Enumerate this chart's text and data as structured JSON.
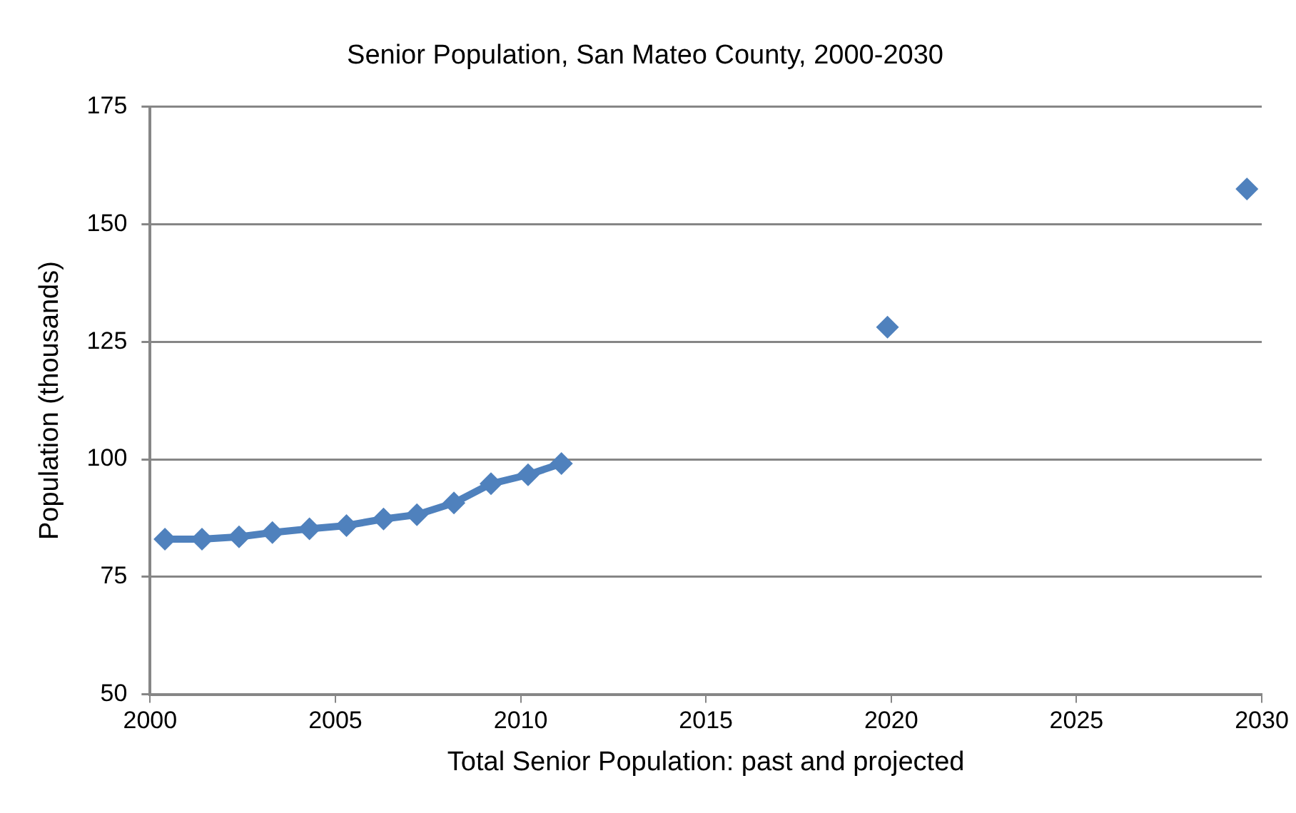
{
  "chart_data": {
    "type": "line",
    "title": "Senior Population, San Mateo County, 2000-2030",
    "xlabel": "Total Senior Population: past and projected",
    "ylabel": "Population (thousands)",
    "xlim": [
      2000,
      2030
    ],
    "xticks": [
      2000,
      2005,
      2010,
      2015,
      2020,
      2025,
      2030
    ],
    "ylim": [
      50,
      175
    ],
    "yticks": [
      50,
      75,
      100,
      125,
      150,
      175
    ],
    "grid": "y",
    "legend": false,
    "marker": "diamond",
    "line_style": "solid",
    "series": [
      {
        "color": "#4f81bd",
        "x": [
          2000.4,
          2001.4,
          2002.4,
          2003.3,
          2004.3,
          2005.3,
          2006.3,
          2007.2,
          2008.2,
          2009.2,
          2010.2,
          2011.1
        ],
        "values": [
          83.0,
          83.0,
          83.5,
          84.4,
          85.2,
          85.9,
          87.3,
          88.2,
          90.7,
          94.8,
          96.7,
          99.1
        ]
      },
      {
        "type": "scatter",
        "color": "#4f81bd",
        "x": [
          2019.9,
          2029.6
        ],
        "values": [
          128.1,
          157.5
        ]
      }
    ]
  }
}
